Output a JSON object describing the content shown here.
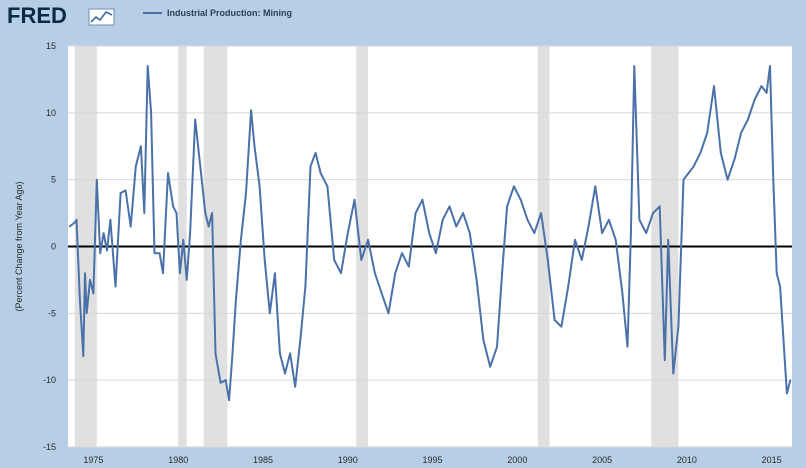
{
  "brand": {
    "logo_text": "FRED",
    "logo_icon": "chart-line-icon"
  },
  "colors": {
    "background": "#b6cfe6",
    "plot": "#ffffff",
    "series": "#4a72a8",
    "recession": "#e0e0e0",
    "zero_line": "#000000"
  },
  "chart_data": {
    "type": "line",
    "title": "",
    "xlabel": "",
    "ylabel": "(Percent Change from Year Ago)",
    "xlim": [
      1973.5,
      2016.2
    ],
    "ylim": [
      -15,
      15
    ],
    "x_ticks": [
      1975,
      1980,
      1985,
      1990,
      1995,
      2000,
      2005,
      2010,
      2015
    ],
    "y_ticks": [
      15,
      10,
      5,
      0,
      -5,
      -10,
      -15
    ],
    "grid": "horizontal",
    "legend": "top-left",
    "zero_line": true,
    "recessions": [
      [
        1973.9,
        1975.2
      ],
      [
        1980.0,
        1980.5
      ],
      [
        1981.5,
        1982.9
      ],
      [
        1990.5,
        1991.2
      ],
      [
        2001.2,
        2001.9
      ],
      [
        2007.9,
        2009.5
      ]
    ],
    "series": [
      {
        "name": "Industrial Production: Mining",
        "x": [
          1973.6,
          1973.9,
          1974.0,
          1974.2,
          1974.4,
          1974.5,
          1974.6,
          1974.8,
          1975.0,
          1975.2,
          1975.4,
          1975.6,
          1975.8,
          1976.0,
          1976.3,
          1976.6,
          1976.9,
          1977.2,
          1977.5,
          1977.8,
          1978.0,
          1978.2,
          1978.4,
          1978.6,
          1978.9,
          1979.1,
          1979.4,
          1979.7,
          1979.9,
          1980.1,
          1980.3,
          1980.5,
          1980.7,
          1981.0,
          1981.3,
          1981.6,
          1981.8,
          1982.0,
          1982.2,
          1982.5,
          1982.8,
          1983.0,
          1983.2,
          1983.4,
          1983.7,
          1984.0,
          1984.3,
          1984.5,
          1984.8,
          1985.1,
          1985.4,
          1985.7,
          1986.0,
          1986.3,
          1986.6,
          1986.9,
          1987.2,
          1987.5,
          1987.8,
          1988.1,
          1988.4,
          1988.8,
          1989.2,
          1989.6,
          1990.0,
          1990.4,
          1990.8,
          1991.2,
          1991.6,
          1992.0,
          1992.4,
          1992.8,
          1993.2,
          1993.6,
          1994.0,
          1994.4,
          1994.8,
          1995.2,
          1995.6,
          1996.0,
          1996.4,
          1996.8,
          1997.2,
          1997.6,
          1998.0,
          1998.4,
          1998.8,
          1999.1,
          1999.4,
          1999.8,
          2000.2,
          2000.6,
          2001.0,
          2001.4,
          2001.8,
          2002.2,
          2002.6,
          2003.0,
          2003.4,
          2003.8,
          2004.2,
          2004.6,
          2005.0,
          2005.4,
          2005.8,
          2006.2,
          2006.5,
          2006.7,
          2006.9,
          2007.2,
          2007.6,
          2008.0,
          2008.4,
          2008.7,
          2008.9,
          2009.2,
          2009.5,
          2009.8,
          2010.1,
          2010.4,
          2010.8,
          2011.2,
          2011.6,
          2012.0,
          2012.4,
          2012.8,
          2013.2,
          2013.6,
          2014.0,
          2014.4,
          2014.7,
          2014.9,
          2015.1,
          2015.3,
          2015.5,
          2015.7,
          2015.9,
          2016.1
        ],
        "values": [
          1.5,
          1.8,
          2.0,
          -4.0,
          -8.2,
          -2.0,
          -5.0,
          -2.5,
          -3.5,
          5.0,
          -0.5,
          1.0,
          -0.3,
          2.0,
          -3.0,
          4.0,
          4.2,
          1.5,
          6.0,
          7.5,
          2.5,
          13.5,
          10.0,
          -0.5,
          -0.5,
          -2.0,
          5.5,
          3.0,
          2.5,
          -2.0,
          0.5,
          -2.5,
          1.0,
          9.5,
          6.0,
          2.5,
          1.5,
          2.5,
          -8.0,
          -10.2,
          -10.0,
          -11.5,
          -8.0,
          -4.0,
          0.5,
          4.0,
          10.2,
          7.5,
          4.5,
          -1.0,
          -5.0,
          -2.0,
          -8.0,
          -9.5,
          -8.0,
          -10.5,
          -7.0,
          -3.0,
          6.0,
          7.0,
          5.5,
          4.5,
          -1.0,
          -2.0,
          1.0,
          3.5,
          -1.0,
          0.5,
          -2.0,
          -3.5,
          -5.0,
          -2.0,
          -0.5,
          -1.5,
          2.5,
          3.5,
          1.0,
          -0.5,
          2.0,
          3.0,
          1.5,
          2.5,
          1.0,
          -2.5,
          -7.0,
          -9.0,
          -7.5,
          -2.0,
          3.0,
          4.5,
          3.5,
          2.0,
          1.0,
          2.5,
          -1.0,
          -5.5,
          -6.0,
          -3.0,
          0.5,
          -1.0,
          1.5,
          4.5,
          1.0,
          2.0,
          0.5,
          -3.5,
          -7.5,
          1.0,
          13.5,
          2.0,
          1.0,
          2.5,
          3.0,
          -8.5,
          0.5,
          -9.5,
          -6.0,
          5.0,
          5.5,
          6.0,
          7.0,
          8.5,
          12.0,
          7.0,
          5.0,
          6.5,
          8.5,
          9.5,
          11.0,
          12.0,
          11.5,
          13.5,
          5.0,
          -2.0,
          -3.0,
          -7.0,
          -11.0,
          -10.0
        ]
      }
    ]
  }
}
